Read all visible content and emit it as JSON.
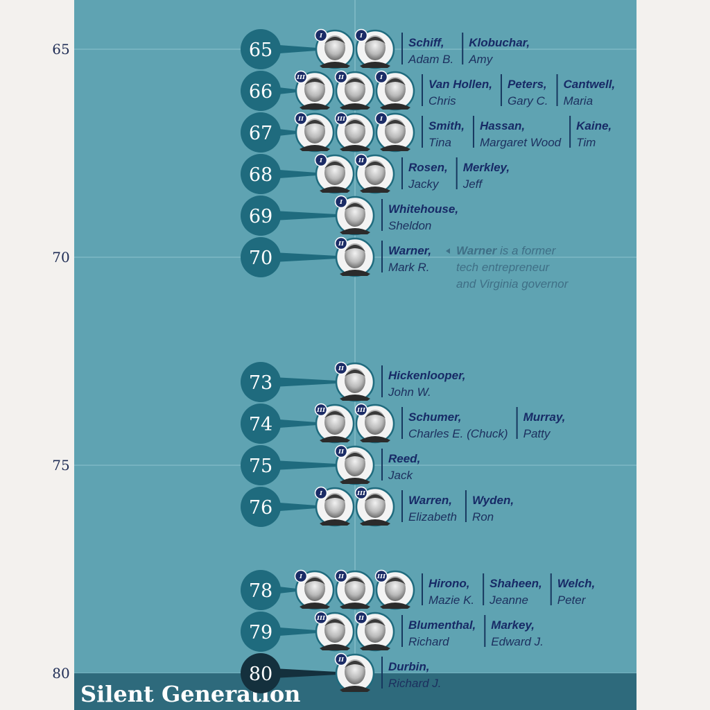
{
  "colors": {
    "panel": "#5fa3b2",
    "bubble": "#1f6b7e",
    "bubble_dark": "#14303d",
    "band": "#2e6a7c",
    "name_text": "#172a66",
    "note_text": "#3f6f86",
    "term_badge": "#1b2c66"
  },
  "generation_label": "Silent Generation",
  "chart_data": {
    "type": "dot-timeline",
    "y_axis": {
      "ticks": [
        65,
        70,
        75,
        80
      ],
      "range": [
        64,
        81
      ]
    },
    "rows": [
      {
        "age": 65,
        "senators": [
          {
            "last": "Schiff,",
            "first": "Adam B.",
            "term": "I"
          },
          {
            "last": "Klobuchar,",
            "first": "Amy",
            "term": "I"
          }
        ]
      },
      {
        "age": 66,
        "senators": [
          {
            "last": "Van Hollen,",
            "first": "Chris",
            "term": "III"
          },
          {
            "last": "Peters,",
            "first": "Gary C.",
            "term": "II"
          },
          {
            "last": "Cantwell,",
            "first": "Maria",
            "term": "I"
          }
        ]
      },
      {
        "age": 67,
        "senators": [
          {
            "last": "Smith,",
            "first": "Tina",
            "term": "II"
          },
          {
            "last": "Hassan,",
            "first": "Margaret Wood",
            "term": "III"
          },
          {
            "last": "Kaine,",
            "first": "Tim",
            "term": "I"
          }
        ]
      },
      {
        "age": 68,
        "senators": [
          {
            "last": "Rosen,",
            "first": "Jacky",
            "term": "I"
          },
          {
            "last": "Merkley,",
            "first": "Jeff",
            "term": "II"
          }
        ]
      },
      {
        "age": 69,
        "senators": [
          {
            "last": "Whitehouse,",
            "first": "Sheldon",
            "term": "I"
          }
        ]
      },
      {
        "age": 70,
        "senators": [
          {
            "last": "Warner,",
            "first": "Mark R.",
            "term": "II"
          }
        ]
      },
      {
        "age": 73,
        "senators": [
          {
            "last": "Hickenlooper,",
            "first": "John W.",
            "term": "II"
          }
        ]
      },
      {
        "age": 74,
        "senators": [
          {
            "last": "Schumer,",
            "first": "Charles E. (Chuck)",
            "term": "III"
          },
          {
            "last": "Murray,",
            "first": "Patty",
            "term": "III"
          }
        ]
      },
      {
        "age": 75,
        "senators": [
          {
            "last": "Reed,",
            "first": "Jack",
            "term": "II"
          }
        ]
      },
      {
        "age": 76,
        "senators": [
          {
            "last": "Warren,",
            "first": "Elizabeth",
            "term": "I"
          },
          {
            "last": "Wyden,",
            "first": "Ron",
            "term": "III"
          }
        ]
      },
      {
        "age": 78,
        "senators": [
          {
            "last": "Hirono,",
            "first": "Mazie K.",
            "term": "I"
          },
          {
            "last": "Shaheen,",
            "first": "Jeanne",
            "term": "II"
          },
          {
            "last": "Welch,",
            "first": "Peter",
            "term": "III"
          }
        ]
      },
      {
        "age": 79,
        "senators": [
          {
            "last": "Blumenthal,",
            "first": "Richard",
            "term": "III"
          },
          {
            "last": "Markey,",
            "first": "Edward J.",
            "term": "II"
          }
        ]
      },
      {
        "age": 80,
        "senators": [
          {
            "last": "Durbin,",
            "first": "Richard J.",
            "term": "II"
          }
        ]
      }
    ],
    "annotation": {
      "age": 70,
      "bold": "Warner",
      "line1_rest": " is a former",
      "line2": "tech entrepreneur",
      "line3": "and Virginia governor"
    }
  }
}
